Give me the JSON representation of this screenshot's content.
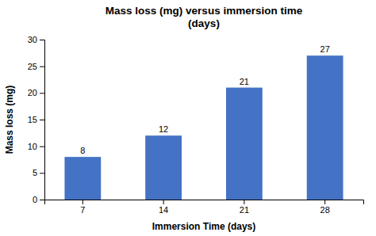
{
  "chart_data": {
    "type": "bar",
    "title": "Mass loss (mg) versus immersion time\n(days)",
    "x_label": "Immersion Time (days)",
    "y_label": "Mass loss (mg)",
    "categories": [
      7,
      14,
      21,
      28
    ],
    "values": [
      8,
      12,
      21,
      27
    ],
    "color": "#4472C4",
    "ylim": [
      0,
      30
    ],
    "yticks": [
      0,
      5,
      10,
      15,
      20,
      25,
      30
    ],
    "grid": false,
    "data_labels": true
  }
}
